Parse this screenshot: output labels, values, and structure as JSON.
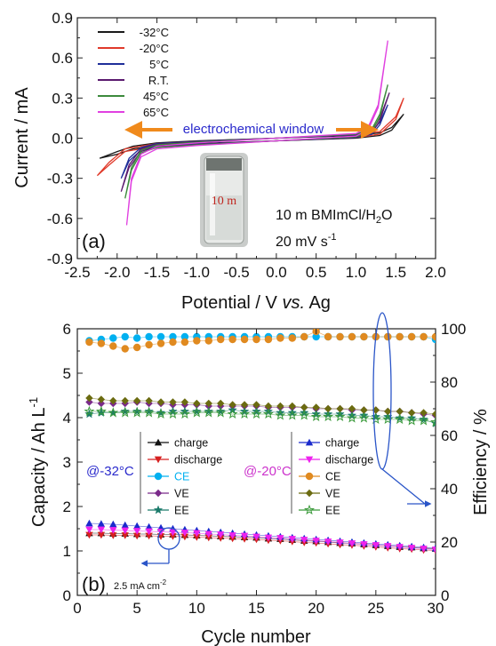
{
  "chart_data": [
    {
      "panel": "(a)",
      "type": "line",
      "xlabel_main": "Potential / V",
      "xlabel_italic": "vs.",
      "xlabel_tail": "Ag",
      "ylabel": "Current / mA",
      "xlim": [
        -2.5,
        2.0
      ],
      "ylim": [
        -0.9,
        0.9
      ],
      "xticks": [
        "-2.5",
        "-2.0",
        "-1.5",
        "-1.0",
        "-0.5",
        "0.0",
        "0.5",
        "1.0",
        "1.5",
        "2.0"
      ],
      "yticks": [
        "-0.9",
        "-0.6",
        "-0.3",
        "0.0",
        "0.3",
        "0.6",
        "0.9"
      ],
      "annotation_window": "electrochemical window",
      "annotation_vial": "10 m",
      "annotation_electrolyte": "10 m BMImCl/H",
      "annotation_electrolyte_sub": "2",
      "annotation_electrolyte_tail": "O",
      "annotation_rate": "20 mV s",
      "annotation_rate_sup": "-1",
      "series": [
        {
          "name": "-32°C",
          "color": "#1a1a1a",
          "x": [
            -2.22,
            -2.0,
            -1.8,
            -1.5,
            -1.0,
            -0.5,
            0.0,
            0.5,
            1.0,
            1.3,
            1.45,
            1.6
          ],
          "y": [
            -0.15,
            -0.1,
            -0.06,
            -0.035,
            -0.02,
            -0.01,
            0.0,
            0.01,
            0.02,
            0.04,
            0.08,
            0.18
          ]
        },
        {
          "name": "-20°C",
          "color": "#e03a2a",
          "x": [
            -2.25,
            -2.1,
            -1.9,
            -1.5,
            -1.0,
            -0.5,
            0.0,
            0.5,
            1.0,
            1.3,
            1.5,
            1.6
          ],
          "y": [
            -0.28,
            -0.18,
            -0.08,
            -0.04,
            -0.025,
            -0.012,
            0.0,
            0.012,
            0.025,
            0.05,
            0.16,
            0.3
          ]
        },
        {
          "name": "5°C",
          "color": "#1f2f9a",
          "x": [
            -1.95,
            -1.85,
            -1.7,
            -1.5,
            -1.0,
            -0.5,
            0.0,
            0.5,
            1.0,
            1.2,
            1.3,
            1.4
          ],
          "y": [
            -0.3,
            -0.15,
            -0.07,
            -0.04,
            -0.025,
            -0.012,
            0.0,
            0.012,
            0.025,
            0.05,
            0.12,
            0.25
          ]
        },
        {
          "name": "R.T.",
          "color": "#5a1a6e",
          "x": [
            -1.95,
            -1.85,
            -1.7,
            -1.5,
            -1.0,
            -0.5,
            0.0,
            0.5,
            1.0,
            1.2,
            1.3,
            1.42
          ],
          "y": [
            -0.4,
            -0.2,
            -0.08,
            -0.045,
            -0.028,
            -0.014,
            0.0,
            0.014,
            0.028,
            0.06,
            0.15,
            0.34
          ]
        },
        {
          "name": "45°C",
          "color": "#3c8a3c",
          "x": [
            -1.9,
            -1.82,
            -1.7,
            -1.5,
            -1.0,
            -0.5,
            0.0,
            0.5,
            1.0,
            1.2,
            1.3,
            1.4
          ],
          "y": [
            -0.45,
            -0.22,
            -0.09,
            -0.05,
            -0.03,
            -0.015,
            0.0,
            0.015,
            0.03,
            0.07,
            0.18,
            0.4
          ]
        },
        {
          "name": "65°C",
          "color": "#e040e0",
          "x": [
            -1.88,
            -1.82,
            -1.7,
            -1.5,
            -1.0,
            -0.5,
            0.0,
            0.5,
            1.0,
            1.15,
            1.28,
            1.4
          ],
          "y": [
            -0.65,
            -0.3,
            -0.12,
            -0.06,
            -0.035,
            -0.018,
            0.0,
            0.018,
            0.035,
            0.08,
            0.25,
            0.73
          ]
        }
      ]
    },
    {
      "panel": "(b)",
      "type": "scatter",
      "xlabel": "Cycle number",
      "ylabel_left": "Capacity / Ah L",
      "ylabel_left_sup": "-1",
      "ylabel_right": "Efficiency / %",
      "xlim": [
        0,
        30
      ],
      "ylim_left": [
        0,
        6
      ],
      "ylim_right": [
        0,
        100
      ],
      "xticks": [
        "0",
        "5",
        "10",
        "15",
        "20",
        "25",
        "30"
      ],
      "yticks_left": [
        "0",
        "1",
        "2",
        "3",
        "4",
        "5",
        "6"
      ],
      "yticks_right": [
        "0",
        "20",
        "40",
        "60",
        "80",
        "100"
      ],
      "annotation_current": "2.5 mA cm",
      "annotation_current_sup": "-2",
      "group_labels": [
        "@-32°C",
        "@-20°C"
      ],
      "group_colors": [
        "#2a2acc",
        "#cc33cc"
      ],
      "legend_32": [
        {
          "label": "charge",
          "color": "#111111",
          "marker": "tri-up"
        },
        {
          "label": "discharge",
          "color": "#d62020",
          "marker": "tri-down"
        },
        {
          "label": "CE",
          "color": "#00b0f0",
          "marker": "circle"
        },
        {
          "label": "VE",
          "color": "#7a2a8a",
          "marker": "diamond"
        },
        {
          "label": "EE",
          "color": "#1a7a6a",
          "marker": "star"
        }
      ],
      "legend_20": [
        {
          "label": "charge",
          "color": "#1a2acc",
          "marker": "tri-up"
        },
        {
          "label": "discharge",
          "color": "#ee22ee",
          "marker": "tri-down"
        },
        {
          "label": "CE",
          "color": "#e08a20",
          "marker": "circle"
        },
        {
          "label": "VE",
          "color": "#6b6b10",
          "marker": "diamond"
        },
        {
          "label": "EE",
          "color": "#3a9a3a",
          "marker": "star-open"
        }
      ],
      "x": [
        1,
        2,
        3,
        4,
        5,
        6,
        7,
        8,
        9,
        10,
        11,
        12,
        13,
        14,
        15,
        16,
        17,
        18,
        19,
        20,
        21,
        22,
        23,
        24,
        25,
        26,
        27,
        28,
        29,
        30
      ],
      "series": [
        {
          "name": "charge",
          "group": "@-32°C",
          "axis": "left",
          "color": "#111111",
          "marker": "tri-up",
          "values": [
            1.4,
            1.4,
            1.39,
            1.39,
            1.38,
            1.38,
            1.37,
            1.37,
            1.36,
            1.35,
            1.34,
            1.33,
            1.32,
            1.31,
            1.3,
            1.28,
            1.27,
            1.25,
            1.23,
            1.22,
            1.2,
            1.18,
            1.17,
            1.15,
            1.13,
            1.11,
            1.09,
            1.08,
            1.06,
            1.05
          ]
        },
        {
          "name": "discharge",
          "group": "@-32°C",
          "axis": "left",
          "color": "#d62020",
          "marker": "tri-down",
          "values": [
            1.36,
            1.36,
            1.35,
            1.35,
            1.34,
            1.34,
            1.33,
            1.33,
            1.32,
            1.31,
            1.3,
            1.29,
            1.28,
            1.27,
            1.26,
            1.24,
            1.23,
            1.21,
            1.19,
            1.18,
            1.16,
            1.14,
            1.13,
            1.11,
            1.09,
            1.07,
            1.05,
            1.04,
            1.02,
            1.01
          ]
        },
        {
          "name": "CE",
          "group": "@-32°C",
          "axis": "right",
          "color": "#00b0f0",
          "marker": "circle",
          "values": [
            95.5,
            96.0,
            96.5,
            97.0,
            96.5,
            97.0,
            97.0,
            97.0,
            97.0,
            97.0,
            97.0,
            97.0,
            97.0,
            97.0,
            97.0,
            97.0,
            97.0,
            97.0,
            97.0,
            97.0,
            97.0,
            97.0,
            97.0,
            97.0,
            97.0,
            97.0,
            97.0,
            97.0,
            97.0,
            96.0
          ]
        },
        {
          "name": "VE",
          "group": "@-32°C",
          "axis": "right",
          "color": "#7a2a8a",
          "marker": "diamond",
          "values": [
            72.5,
            72.0,
            72.0,
            72.0,
            72.5,
            72.0,
            72.0,
            71.5,
            71.5,
            71.5,
            71.0,
            71.0,
            71.0,
            71.0,
            71.0,
            70.5,
            70.5,
            70.5,
            70.5,
            70.0,
            70.0,
            70.0,
            69.5,
            69.5,
            69.5,
            69.0,
            69.0,
            68.5,
            68.0,
            67.5
          ]
        },
        {
          "name": "EE",
          "group": "@-32°C",
          "axis": "right",
          "color": "#1a7a6a",
          "marker": "star",
          "values": [
            68.0,
            68.5,
            68.5,
            69.0,
            69.0,
            69.0,
            68.5,
            69.0,
            69.0,
            69.0,
            69.0,
            69.0,
            69.5,
            69.0,
            69.0,
            69.0,
            68.5,
            68.5,
            68.5,
            68.0,
            68.0,
            68.0,
            67.5,
            67.5,
            67.0,
            67.0,
            66.5,
            66.5,
            66.0,
            64.5
          ]
        },
        {
          "name": "charge",
          "group": "@-20°C",
          "axis": "left",
          "color": "#1a2acc",
          "marker": "tri-up",
          "values": [
            1.62,
            1.61,
            1.6,
            1.58,
            1.56,
            1.54,
            1.52,
            1.5,
            1.48,
            1.46,
            1.44,
            1.42,
            1.4,
            1.38,
            1.36,
            1.34,
            1.32,
            1.3,
            1.28,
            1.26,
            1.24,
            1.22,
            1.2,
            1.18,
            1.16,
            1.14,
            1.12,
            1.1,
            1.08,
            1.06
          ]
        },
        {
          "name": "discharge",
          "group": "@-20°C",
          "axis": "left",
          "color": "#ee22ee",
          "marker": "tri-down",
          "values": [
            1.48,
            1.48,
            1.47,
            1.46,
            1.45,
            1.44,
            1.43,
            1.42,
            1.41,
            1.4,
            1.38,
            1.37,
            1.35,
            1.34,
            1.32,
            1.3,
            1.29,
            1.27,
            1.25,
            1.23,
            1.21,
            1.19,
            1.17,
            1.15,
            1.13,
            1.11,
            1.09,
            1.07,
            1.05,
            1.03
          ]
        },
        {
          "name": "CE",
          "group": "@-20°C",
          "axis": "right",
          "color": "#e08a20",
          "marker": "circle",
          "values": [
            95.0,
            94.5,
            93.5,
            92.5,
            93.0,
            94.0,
            94.5,
            95.0,
            95.0,
            95.5,
            95.5,
            96.0,
            96.0,
            96.0,
            96.0,
            96.0,
            96.5,
            96.5,
            97.0,
            99.0,
            97.0,
            97.0,
            97.0,
            97.0,
            97.0,
            97.0,
            97.0,
            97.0,
            97.0,
            97.0
          ]
        },
        {
          "name": "VE",
          "group": "@-20°C",
          "axis": "right",
          "color": "#6b6b10",
          "marker": "diamond",
          "values": [
            74.0,
            73.5,
            73.0,
            73.0,
            73.0,
            73.0,
            72.5,
            72.5,
            72.5,
            72.0,
            72.0,
            72.0,
            71.5,
            71.5,
            71.5,
            71.0,
            71.0,
            71.0,
            70.5,
            70.5,
            70.0,
            70.0,
            70.0,
            69.5,
            69.5,
            69.0,
            69.0,
            68.5,
            68.5,
            68.0
          ]
        },
        {
          "name": "EE",
          "group": "@-20°C",
          "axis": "right",
          "color": "#3a9a3a",
          "marker": "star-open",
          "values": [
            69.0,
            69.0,
            68.5,
            68.5,
            68.5,
            68.5,
            68.0,
            68.0,
            68.0,
            68.5,
            68.5,
            68.5,
            68.0,
            68.0,
            68.0,
            68.0,
            67.5,
            67.5,
            67.5,
            67.0,
            67.0,
            67.0,
            66.5,
            66.5,
            66.0,
            66.0,
            66.0,
            65.5,
            65.5,
            65.0
          ]
        }
      ]
    }
  ]
}
